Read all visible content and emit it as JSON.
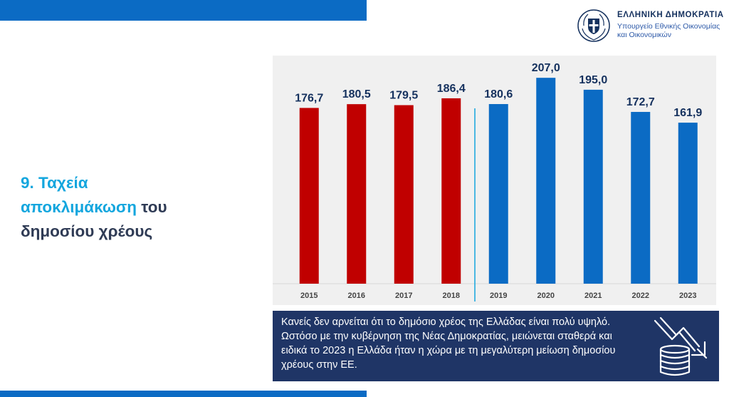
{
  "header": {
    "org_title": "ΕΛΛΗΝΙΚΗ ΔΗΜΟΚΡΑΤΙΑ",
    "org_subtitle_line1": "Υπουργείο Εθνικής Οικονομίας",
    "org_subtitle_line2": "και Οικονομικών",
    "accent_color": "#0b6bc4"
  },
  "heading": {
    "part1": "9. Ταχεία",
    "part2": "αποκλιμάκωση",
    "part3": " του",
    "part4": "δημοσίου χρέους",
    "highlight_color": "#13a6de",
    "dark_color": "#2f3b55"
  },
  "chart_data": {
    "type": "bar",
    "categories": [
      "2015",
      "2016",
      "2017",
      "2018",
      "2019",
      "2020",
      "2021",
      "2022",
      "2023"
    ],
    "values": [
      176.7,
      180.5,
      179.5,
      186.4,
      180.6,
      207.0,
      195.0,
      172.7,
      161.9
    ],
    "data_labels": [
      "176,7",
      "180,5",
      "179,5",
      "186,4",
      "180,6",
      "207,0",
      "195,0",
      "172,7",
      "161,9"
    ],
    "series_colors": [
      "#c00000",
      "#c00000",
      "#c00000",
      "#c00000",
      "#0b6bc4",
      "#0b6bc4",
      "#0b6bc4",
      "#0b6bc4",
      "#0b6bc4"
    ],
    "divider_after_category": "2018",
    "title": "",
    "xlabel": "",
    "ylabel": "",
    "ylim": [
      0,
      215
    ]
  },
  "info_box": {
    "text": "Κανείς δεν αρνείται ότι το δημόσιο χρέος της Ελλάδας είναι πολύ υψηλό. Ωστόσο με την κυβέρνηση της Νέας Δημοκρατίας, μειώνεται σταθερά και ειδικά το 2023 η Ελλάδα ήταν η χώρα με τη μεγαλύτερη μείωση δημοσίου χρέους στην ΕΕ.",
    "background": "#1f3566",
    "icon": "declining-debt-icon"
  }
}
